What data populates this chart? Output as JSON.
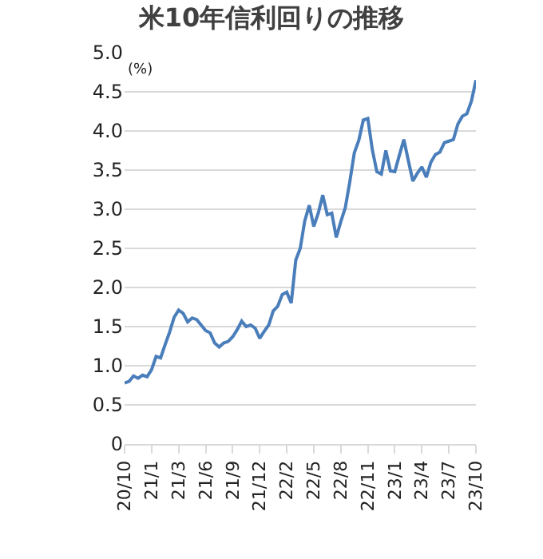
{
  "chart_data": {
    "type": "line",
    "title": "米10年信利回りの推移",
    "ylabel": "(%)",
    "categories": [
      "20/10",
      null,
      null,
      null,
      null,
      null,
      "21/1",
      null,
      null,
      null,
      null,
      null,
      "21/3",
      null,
      null,
      null,
      null,
      null,
      "21/6",
      null,
      null,
      null,
      null,
      null,
      "21/9",
      null,
      null,
      null,
      null,
      null,
      "21/12",
      null,
      null,
      null,
      null,
      null,
      "22/2",
      null,
      null,
      null,
      null,
      null,
      "22/5",
      null,
      null,
      null,
      null,
      null,
      "22/8",
      null,
      null,
      null,
      null,
      null,
      "22/11",
      null,
      null,
      null,
      null,
      null,
      "23/1",
      null,
      null,
      null,
      null,
      null,
      "23/4",
      null,
      null,
      null,
      null,
      null,
      "23/7",
      null,
      null,
      null,
      null,
      null,
      "23/10"
    ],
    "series": [
      {
        "color": "#4a7ebb",
        "values": [
          0.78,
          0.8,
          0.87,
          0.84,
          0.88,
          0.86,
          0.95,
          1.12,
          1.1,
          1.27,
          1.43,
          1.62,
          1.71,
          1.67,
          1.56,
          1.61,
          1.59,
          1.52,
          1.45,
          1.42,
          1.29,
          1.24,
          1.29,
          1.31,
          1.37,
          1.46,
          1.57,
          1.5,
          1.52,
          1.48,
          1.35,
          1.44,
          1.52,
          1.7,
          1.76,
          1.91,
          1.94,
          1.8,
          2.35,
          2.5,
          2.85,
          3.05,
          2.78,
          2.95,
          3.18,
          2.93,
          2.95,
          2.64,
          2.84,
          3.02,
          3.35,
          3.72,
          3.88,
          4.14,
          4.16,
          3.76,
          3.48,
          3.45,
          3.75,
          3.49,
          3.48,
          3.69,
          3.89,
          3.62,
          3.36,
          3.46,
          3.54,
          3.41,
          3.6,
          3.7,
          3.73,
          3.85,
          3.87,
          3.89,
          4.09,
          4.19,
          4.22,
          4.38,
          4.65
        ]
      }
    ],
    "ylim": [
      0,
      5
    ],
    "yticks": [
      0,
      {
        "value": 0.5,
        "label": "0.5"
      },
      {
        "value": 1,
        "label": "1.0"
      },
      {
        "value": 1.5,
        "label": "1.5"
      },
      {
        "value": 2,
        "label": "2.0"
      },
      {
        "value": 2.5,
        "label": "2.5"
      },
      {
        "value": 3,
        "label": "3.0"
      },
      {
        "value": 3.5,
        "label": "3.5"
      },
      {
        "value": 4,
        "label": "4.0"
      },
      {
        "value": 4.5,
        "label": "4.5"
      },
      {
        "value": 5,
        "label": "5.0"
      }
    ],
    "grid": "y",
    "marker": "none",
    "line_style": "solid"
  }
}
